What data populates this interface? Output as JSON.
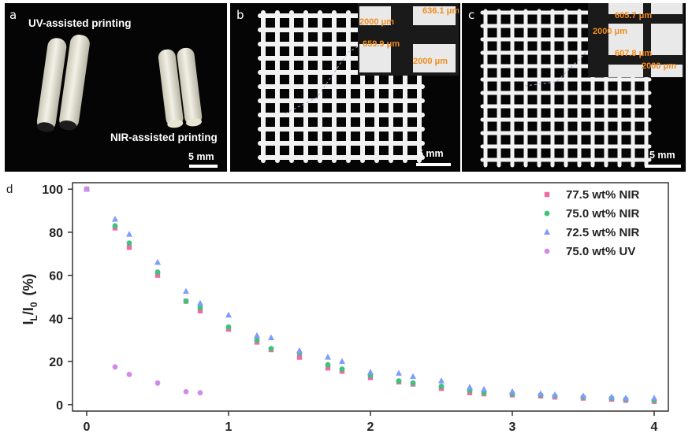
{
  "panels": {
    "a": {
      "letter": "a",
      "label_uv": "UV-assisted printing",
      "label_nir": "NIR-assisted printing",
      "scale": "5 mm"
    },
    "b": {
      "letter": "b",
      "scale": "5 mm",
      "inset": [
        "2000 μm",
        "636.1 μm",
        "659.9 μm",
        "2000 μm"
      ]
    },
    "c": {
      "letter": "c",
      "scale": "5 mm",
      "inset": [
        "605.7 μm",
        "2000 μm",
        "607.8 μm",
        "2000 μm"
      ]
    },
    "d": {
      "letter": "d"
    }
  },
  "colors": {
    "s77": "#f06aa8",
    "s75": "#3fc37a",
    "s72": "#7f9bff",
    "suv": "#d08ae8"
  },
  "chart_data": {
    "type": "scatter",
    "ylabel_main": "I",
    "ylabel_sub1": "L",
    "ylabel_mid": "/I",
    "ylabel_sub2": "0",
    "ylabel_unit": "(%)",
    "xlim": [
      -0.1,
      4.1
    ],
    "ylim": [
      -3,
      103
    ],
    "xticks": [
      0,
      1,
      2,
      3,
      4
    ],
    "yticks": [
      0,
      20,
      40,
      60,
      80,
      100
    ],
    "legend_position": "top-right",
    "series": [
      {
        "name": "77.5 wt% NIR",
        "marker": "square",
        "color": "#f06aa8",
        "x": [
          0,
          0.2,
          0.3,
          0.5,
          0.7,
          0.8,
          1.0,
          1.2,
          1.3,
          1.5,
          1.7,
          1.8,
          2.0,
          2.2,
          2.3,
          2.5,
          2.7,
          2.8,
          3.0,
          3.2,
          3.3,
          3.5,
          3.7,
          3.8,
          4.0
        ],
        "y": [
          100,
          82,
          73,
          60,
          48,
          43.5,
          35,
          29,
          25.5,
          22,
          17,
          15.5,
          12.5,
          10.5,
          9.5,
          7.5,
          5.5,
          5,
          4.5,
          4,
          3.5,
          3,
          2.5,
          2,
          1.5
        ]
      },
      {
        "name": "75.0 wt% NIR",
        "marker": "circle",
        "color": "#3fc37a",
        "x": [
          0,
          0.2,
          0.3,
          0.5,
          0.7,
          0.8,
          1.0,
          1.2,
          1.3,
          1.5,
          1.7,
          1.8,
          2.0,
          2.2,
          2.3,
          2.5,
          2.7,
          2.8,
          3.0,
          3.2,
          3.3,
          3.5,
          3.7,
          3.8,
          4.0
        ],
        "y": [
          100,
          83,
          75,
          61.5,
          48,
          45,
          36,
          30,
          26,
          24,
          18.5,
          16.5,
          13.5,
          11,
          10,
          8.5,
          6.5,
          5.5,
          5,
          4.5,
          4,
          3.5,
          3,
          2.5,
          2
        ]
      },
      {
        "name": "72.5 wt% NIR",
        "marker": "triangle",
        "color": "#7f9bff",
        "x": [
          0,
          0.2,
          0.3,
          0.5,
          0.7,
          0.8,
          1.0,
          1.2,
          1.3,
          1.5,
          1.7,
          1.8,
          2.0,
          2.2,
          2.3,
          2.5,
          2.7,
          2.8,
          3.0,
          3.2,
          3.3,
          3.5,
          3.7,
          3.8,
          4.0
        ],
        "y": [
          100,
          86,
          79,
          66,
          52.5,
          47,
          41.5,
          32,
          31,
          25,
          22,
          20,
          15,
          14.5,
          13,
          11,
          8,
          7,
          6,
          5,
          4.5,
          4,
          3.5,
          3,
          3
        ]
      },
      {
        "name": "75.0 wt% UV",
        "marker": "circle",
        "color": "#d08ae8",
        "x": [
          0,
          0.2,
          0.3,
          0.5,
          0.7,
          0.8
        ],
        "y": [
          100,
          17.5,
          14,
          10,
          6,
          5.5
        ]
      }
    ]
  }
}
